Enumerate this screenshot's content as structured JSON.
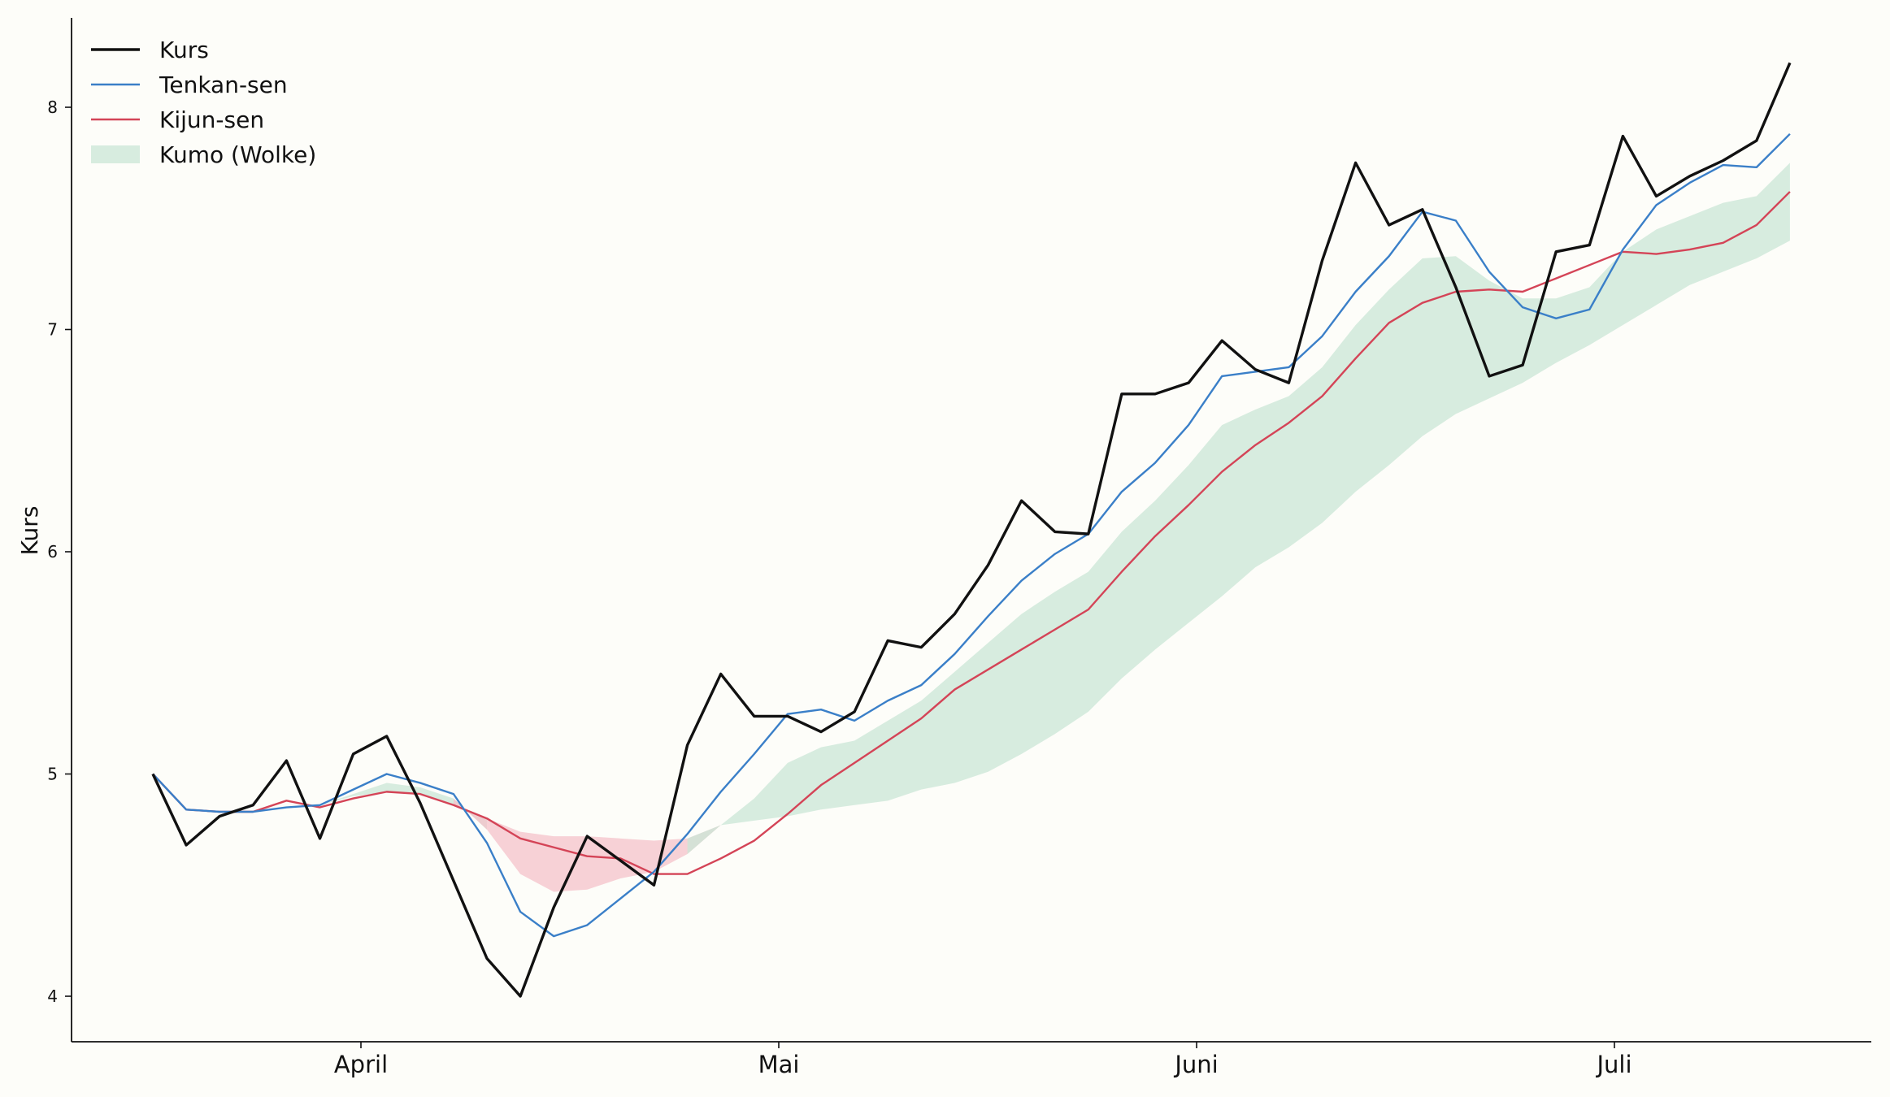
{
  "chart_data": {
    "type": "line",
    "title": "",
    "xlabel": "",
    "ylabel": "Kurs",
    "ylim": [
      3.8,
      8.4
    ],
    "yticks": [
      4,
      5,
      6,
      7,
      8
    ],
    "x_month_ticks": [
      "April",
      "Mai",
      "Juni",
      "Juli"
    ],
    "legend_position": "top-left",
    "grid": false,
    "colors": {
      "background": "#fdfdf9",
      "kurs": "#111111",
      "tenkan": "#3a7fc8",
      "kijun": "#d44457",
      "kumo_bull": "#c9e5d6",
      "kumo_bear": "#f4c2c9"
    },
    "series": [
      {
        "name": "Kurs",
        "values": [
          5.0,
          4.68,
          4.81,
          4.86,
          5.06,
          4.71,
          5.09,
          5.17,
          4.87,
          4.52,
          4.17,
          4.0,
          4.4,
          4.72,
          4.61,
          4.5,
          5.13,
          5.45,
          5.26,
          5.26,
          5.19,
          5.28,
          5.6,
          5.57,
          5.72,
          5.94,
          6.23,
          6.09,
          6.08,
          6.71,
          6.71,
          6.76,
          6.95,
          6.82,
          6.76,
          7.31,
          7.75,
          7.47,
          7.54,
          7.19,
          6.79,
          6.84,
          7.35,
          7.38,
          7.87,
          7.6,
          7.69,
          7.76,
          7.85,
          8.2
        ]
      },
      {
        "name": "Tenkan-sen",
        "values": [
          5.0,
          4.84,
          4.83,
          4.83,
          4.85,
          4.86,
          4.93,
          5.0,
          4.96,
          4.91,
          4.69,
          4.38,
          4.27,
          4.32,
          4.44,
          4.56,
          4.73,
          4.92,
          5.09,
          5.27,
          5.29,
          5.24,
          5.33,
          5.4,
          5.54,
          5.71,
          5.87,
          5.99,
          6.08,
          6.27,
          6.4,
          6.57,
          6.79,
          6.81,
          6.83,
          6.97,
          7.17,
          7.33,
          7.53,
          7.49,
          7.26,
          7.1,
          7.05,
          7.09,
          7.36,
          7.56,
          7.66,
          7.74,
          7.73,
          7.88
        ]
      },
      {
        "name": "Kijun-sen",
        "values": [
          5.0,
          4.84,
          4.83,
          4.83,
          4.88,
          4.85,
          4.89,
          4.92,
          4.91,
          4.86,
          4.8,
          4.71,
          4.67,
          4.63,
          4.62,
          4.55,
          4.55,
          4.62,
          4.7,
          4.82,
          4.95,
          5.05,
          5.15,
          5.25,
          5.38,
          5.47,
          5.56,
          5.65,
          5.74,
          5.91,
          6.07,
          6.21,
          6.36,
          6.48,
          6.58,
          6.7,
          6.87,
          7.03,
          7.12,
          7.17,
          7.18,
          7.17,
          7.23,
          7.29,
          7.35,
          7.34,
          7.36,
          7.39,
          7.47,
          7.62
        ]
      },
      {
        "name": "Kumo (Wolke)",
        "type": "area",
        "senkou_a": [
          null,
          null,
          null,
          null,
          null,
          4.86,
          4.91,
          4.96,
          4.94,
          4.89,
          4.75,
          4.55,
          4.47,
          4.48,
          4.53,
          4.56,
          4.64,
          4.77,
          4.89,
          5.05,
          5.12,
          5.15,
          5.24,
          5.33,
          5.46,
          5.59,
          5.72,
          5.82,
          5.91,
          6.09,
          6.23,
          6.39,
          6.57,
          6.64,
          6.7,
          6.83,
          7.02,
          7.18,
          7.32,
          7.33,
          7.22,
          7.14,
          7.14,
          7.19,
          7.35,
          7.45,
          7.51,
          7.57,
          7.6,
          7.75
        ],
        "senkou_b": [
          null,
          null,
          null,
          null,
          null,
          4.86,
          4.9,
          4.92,
          4.91,
          4.86,
          4.8,
          4.74,
          4.72,
          4.72,
          4.71,
          4.7,
          4.71,
          4.77,
          4.79,
          4.81,
          4.84,
          4.86,
          4.88,
          4.93,
          4.96,
          5.01,
          5.09,
          5.18,
          5.28,
          5.43,
          5.56,
          5.68,
          5.8,
          5.93,
          6.02,
          6.13,
          6.27,
          6.39,
          6.52,
          6.62,
          6.69,
          6.76,
          6.85,
          6.93,
          7.02,
          7.11,
          7.2,
          7.26,
          7.32,
          7.4
        ]
      }
    ]
  }
}
